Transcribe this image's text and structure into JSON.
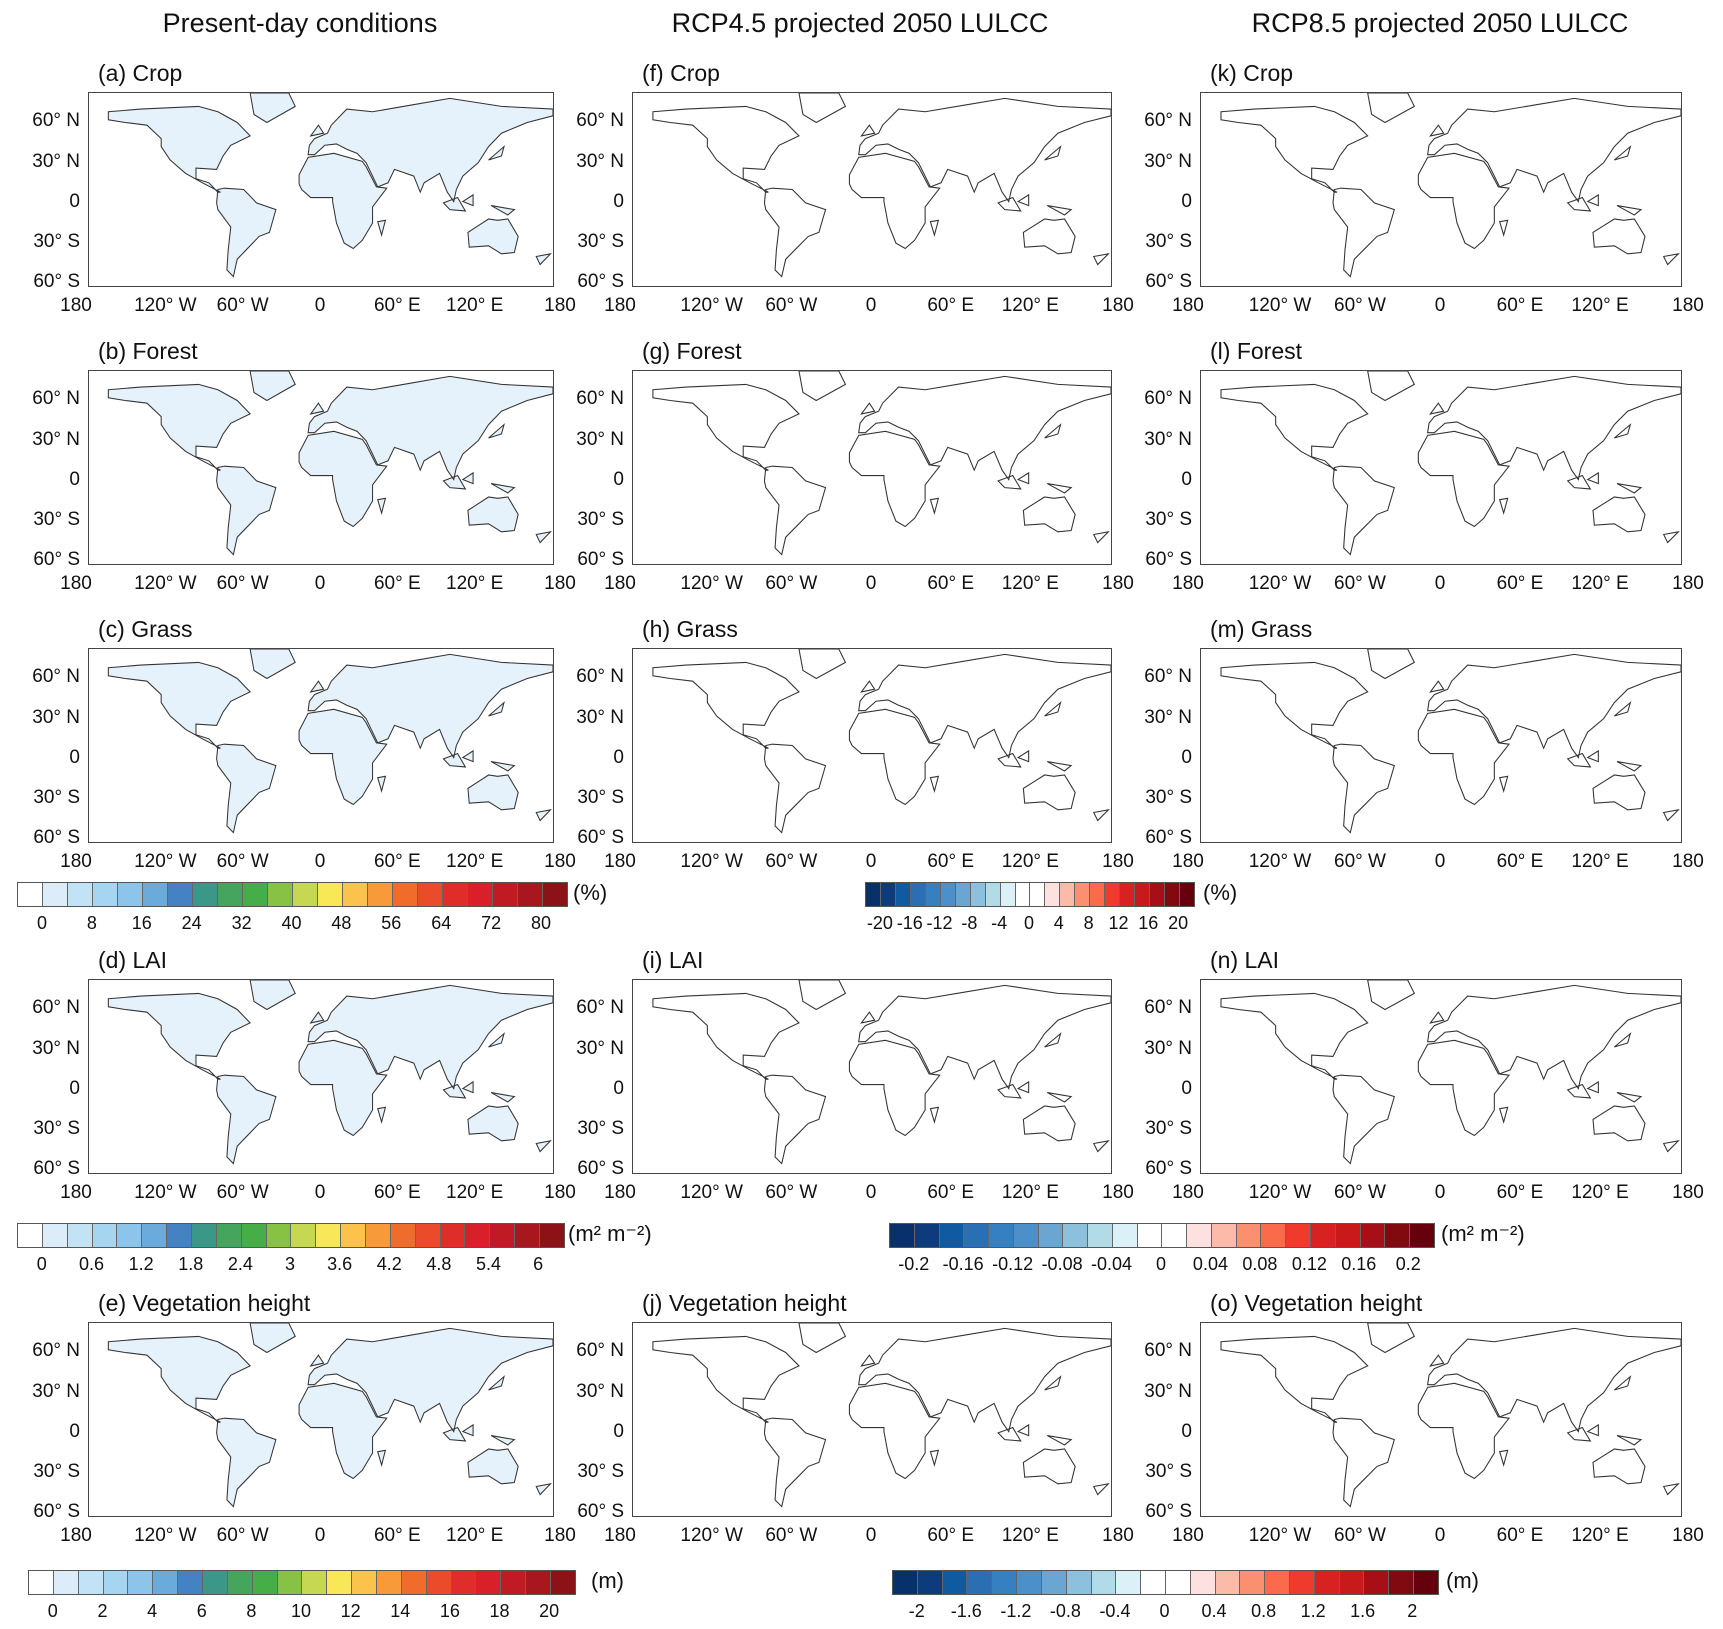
{
  "column_headers": [
    "Present-day conditions",
    "RCP4.5 projected 2050 LULCC",
    "RCP8.5 projected 2050 LULCC"
  ],
  "lat_labels": [
    "60° N",
    "30° N",
    "0",
    "30° S",
    "60° S"
  ],
  "lon_labels": [
    "180",
    "120° W",
    "60° W",
    "0",
    "60° E",
    "120° E",
    "180"
  ],
  "panels": [
    {
      "id": "a",
      "label": "(a) Crop",
      "col": 0,
      "row": 0,
      "kind": "seq"
    },
    {
      "id": "b",
      "label": "(b) Forest",
      "col": 0,
      "row": 1,
      "kind": "seq"
    },
    {
      "id": "c",
      "label": "(c) Grass",
      "col": 0,
      "row": 2,
      "kind": "seq"
    },
    {
      "id": "d",
      "label": "(d) LAI",
      "col": 0,
      "row": 3,
      "kind": "seq"
    },
    {
      "id": "e",
      "label": "(e) Vegetation height",
      "col": 0,
      "row": 4,
      "kind": "seq"
    },
    {
      "id": "f",
      "label": "(f) Crop",
      "col": 1,
      "row": 0,
      "kind": "div"
    },
    {
      "id": "g",
      "label": "(g) Forest",
      "col": 1,
      "row": 1,
      "kind": "div"
    },
    {
      "id": "h",
      "label": "(h) Grass",
      "col": 1,
      "row": 2,
      "kind": "div"
    },
    {
      "id": "i",
      "label": "(i) LAI",
      "col": 1,
      "row": 3,
      "kind": "div"
    },
    {
      "id": "j",
      "label": "(j) Vegetation height",
      "col": 1,
      "row": 4,
      "kind": "div"
    },
    {
      "id": "k",
      "label": "(k) Crop",
      "col": 2,
      "row": 0,
      "kind": "div"
    },
    {
      "id": "l",
      "label": "(l) Forest",
      "col": 2,
      "row": 1,
      "kind": "div"
    },
    {
      "id": "m",
      "label": "(m) Grass",
      "col": 2,
      "row": 2,
      "kind": "div"
    },
    {
      "id": "n",
      "label": "(n) LAI",
      "col": 2,
      "row": 3,
      "kind": "div"
    },
    {
      "id": "o",
      "label": "(o) Vegetation height",
      "col": 2,
      "row": 4,
      "kind": "div"
    }
  ],
  "colors": {
    "sequential": [
      "#ffffff",
      "#dcecf8",
      "#c2e2f5",
      "#a6d5f1",
      "#8cc4ea",
      "#6aabdc",
      "#4582c4",
      "#3b9889",
      "#45a55c",
      "#46ae48",
      "#88c244",
      "#c6d851",
      "#f8e858",
      "#fbc24c",
      "#f99a3a",
      "#f06c2a",
      "#e94b2b",
      "#df2e2a",
      "#d81f2a",
      "#c01b25",
      "#a8161e",
      "#8c1218"
    ],
    "diverging": [
      "#08306b",
      "#0e3b7c",
      "#0f5aa0",
      "#2a6fb4",
      "#3580c0",
      "#4b90c8",
      "#6ba6d2",
      "#8cc0dc",
      "#b2dbe8",
      "#dcf0f8",
      "#ffffff",
      "#ffffff",
      "#fde0e0",
      "#fcbba8",
      "#fb9070",
      "#fb6a4a",
      "#ef3b2c",
      "#d82222",
      "#c81a1a",
      "#a50f15",
      "#800a10",
      "#67000d"
    ],
    "land": "#e6f2fb",
    "coast": "#333333"
  },
  "colorbars": [
    {
      "kind": "seq",
      "unit": "(%)",
      "ticks": [
        "0",
        "8",
        "16",
        "24",
        "32",
        "40",
        "48",
        "56",
        "64",
        "72",
        "80"
      ]
    },
    {
      "kind": "div",
      "unit": "(%)",
      "ticks": [
        "-20",
        "-16",
        "-12",
        "-8",
        "-4",
        "0",
        "4",
        "8",
        "12",
        "16",
        "20"
      ]
    },
    {
      "kind": "seq",
      "unit": "(m² m⁻²)",
      "ticks": [
        "0",
        "0.6",
        "1.2",
        "1.8",
        "2.4",
        "3",
        "3.6",
        "4.2",
        "4.8",
        "5.4",
        "6"
      ]
    },
    {
      "kind": "div",
      "unit": "(m² m⁻²)",
      "ticks": [
        "-0.2",
        "-0.16",
        "-0.12",
        "-0.08",
        "-0.04",
        "0",
        "0.04",
        "0.08",
        "0.12",
        "0.16",
        "0.2"
      ]
    },
    {
      "kind": "seq",
      "unit": "(m)",
      "ticks": [
        "0",
        "2",
        "4",
        "6",
        "8",
        "10",
        "12",
        "14",
        "16",
        "18",
        "20"
      ]
    },
    {
      "kind": "div",
      "unit": "(m)",
      "ticks": [
        "-2",
        "-1.6",
        "-1.2",
        "-0.8",
        "-0.4",
        "0",
        "0.4",
        "0.8",
        "1.2",
        "1.6",
        "2"
      ]
    }
  ]
}
